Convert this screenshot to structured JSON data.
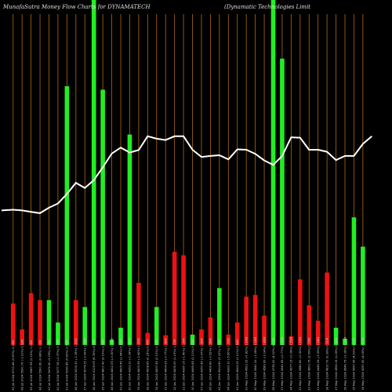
{
  "chart_data": {
    "type": "bar",
    "title_left": "MunafaSutra  Money Flow  Charts for DYNAMATECH",
    "title_right": "(Dynamatic Technologies Limit",
    "ylim": [
      0,
      100
    ],
    "line_ylim": [
      0,
      100
    ],
    "colors": {
      "up": "#22ee22",
      "down": "#ee1111",
      "line": "#ffffff",
      "grid": "#b06a10"
    },
    "bars": [
      {
        "label": "09 Jul 2024 5713.45 (3.87%) 0.95M",
        "value": 12,
        "dir": "down"
      },
      {
        "label": "08 Jul 2024 5500.70 (-1.21%) 0.43M",
        "value": 4.5,
        "dir": "down"
      },
      {
        "label": "05 Jul 2024 5567.95 (1.22%) 1.26M",
        "value": 15,
        "dir": "down"
      },
      {
        "label": "04 Jul 2024 5500.60 (0.48%) 1.12M",
        "value": 13,
        "dir": "down"
      },
      {
        "label": "03 Jul 2024 5474.50 (3.74%) 1.09M",
        "value": 13,
        "dir": "up"
      },
      {
        "label": "02 Jul 2024 5277.35 (-0.37%) 0.79M",
        "value": 6.5,
        "dir": "up"
      },
      {
        "label": "01 Jul 2024 5296.85 (5.82%) 2.52M",
        "value": 75,
        "dir": "up"
      },
      {
        "label": "28 Jun 2024 5005.30 (-1.36%) 1.63M",
        "value": 13,
        "dir": "down"
      },
      {
        "label": "27 Jun 2024 5074.35 (-0.99%) 0.76M",
        "value": 11,
        "dir": "up"
      },
      {
        "label": "26 Jun 2024 5125.05 (6.39%) 4.16M",
        "value": 100,
        "dir": "up"
      },
      {
        "label": "25 Jun 2024 4817.40 (9.19%) 2.98M",
        "value": 74,
        "dir": "up"
      },
      {
        "label": "24 Jun 2024 4412.05 (-0.30%) 0.35M",
        "value": 1.5,
        "dir": "up"
      },
      {
        "label": "21 Jun 2024 4425.45 (1.66%) 0.52M",
        "value": 5,
        "dir": "up"
      },
      {
        "label": "20 Jun 2024 4353.10 (-1.08%) 0.89M",
        "value": 61,
        "dir": "up"
      },
      {
        "label": "19 Jun 2024 4400.55 (-2.40%) 0.92M",
        "value": 18,
        "dir": "down"
      },
      {
        "label": "18 Jun 2024 4508.85 (0.25%) 0.46M",
        "value": 3.5,
        "dir": "down"
      },
      {
        "label": "14 Jun 2024 4497.45 (2.10%) 0.63M",
        "value": 11,
        "dir": "up"
      },
      {
        "label": "13 Jun 2024 4404.95 (-0.77%) 0.48M",
        "value": 2.8,
        "dir": "down"
      },
      {
        "label": "12 Jun 2024 4439.20 (1.19%) 1.07M",
        "value": 27,
        "dir": "down"
      },
      {
        "label": "11 Jun 2024 4387.15 (-1.40%) 1.16M",
        "value": 26,
        "dir": "down"
      },
      {
        "label": "10 Jun 2024 4449.45 (2.11%) 0.61M",
        "value": 3,
        "dir": "up"
      },
      {
        "label": "07 Jun 2024 4357.45 (-2.97%) 0.38M",
        "value": 4.5,
        "dir": "down"
      },
      {
        "label": "06 Jun 2024 4490.80 (-0.53%) 0.58M",
        "value": 8,
        "dir": "down"
      },
      {
        "label": "05 Jun 2024 4514.60 (3.00%) 1.04M",
        "value": 16.5,
        "dir": "up"
      },
      {
        "label": "04 Jun 2024 4383.10 (-5.60%) 0.72M",
        "value": 3,
        "dir": "down"
      },
      {
        "label": "03 Jun 2024 4643.25 (3.11%) 0.84M",
        "value": 6.5,
        "dir": "down"
      },
      {
        "label": "31 May 2024 4503.15 (-0.82%) 0.97M",
        "value": 14,
        "dir": "down"
      },
      {
        "label": "30 May 2024 4540.20 (-1.08%) 1.09M",
        "value": 14.5,
        "dir": "down"
      },
      {
        "label": "29 May 2024 4589.60 (-3.14%) 0.86M",
        "value": 8.5,
        "dir": "down"
      },
      {
        "label": "28 May 2024 4738.20 (4.32%) 4.16M",
        "value": 100,
        "dir": "up"
      },
      {
        "label": "27 May 2024 4541.85 (-0.77%) 1.03M",
        "value": 83,
        "dir": "up"
      },
      {
        "label": "24 May 2024 4577.15 (-0.08%) 0.55M",
        "value": 2.5,
        "dir": "down"
      },
      {
        "label": "23 May 2024 4580.80 (-0.50%) 0.93M",
        "value": 19,
        "dir": "down"
      },
      {
        "label": "22 May 2024 4603.75 (3.56%) 0.76M",
        "value": 11.5,
        "dir": "down"
      },
      {
        "label": "21 May 2024 4445.35 (-3.59%) 0.58M",
        "value": 7,
        "dir": "down"
      },
      {
        "label": "18 May 2024 4610.70 (0.36%) 0.51M",
        "value": 21,
        "dir": "down"
      },
      {
        "label": "17 May 2024 4594.15 (1.06%) 0.43M",
        "value": 5,
        "dir": "up"
      },
      {
        "label": "16 May 2024 4545.75 (-0.26%) 0.31M",
        "value": 1.8,
        "dir": "up"
      },
      {
        "label": "15 May 2024 4557.45 (4.59%) 1.92M",
        "value": 37,
        "dir": "up"
      },
      {
        "label": "14 May 2024 4357.40 (4.06%) 1.47M",
        "value": 28.5,
        "dir": "up"
      }
    ],
    "line": [
      39,
      39.2,
      39,
      38.6,
      38.2,
      39.8,
      41,
      43.8,
      47,
      45.5,
      47.8,
      51.5,
      55.5,
      57.2,
      55.8,
      56.5,
      60.5,
      59.8,
      59.4,
      60.5,
      60.5,
      56.6,
      54.5,
      54.8,
      55,
      53.8,
      56.7,
      56.6,
      55.4,
      53.5,
      52.2,
      54.8,
      60.2,
      60.1,
      56.6,
      56.6,
      56,
      53.6,
      54.8,
      54.8,
      58.3,
      60.5
    ]
  }
}
